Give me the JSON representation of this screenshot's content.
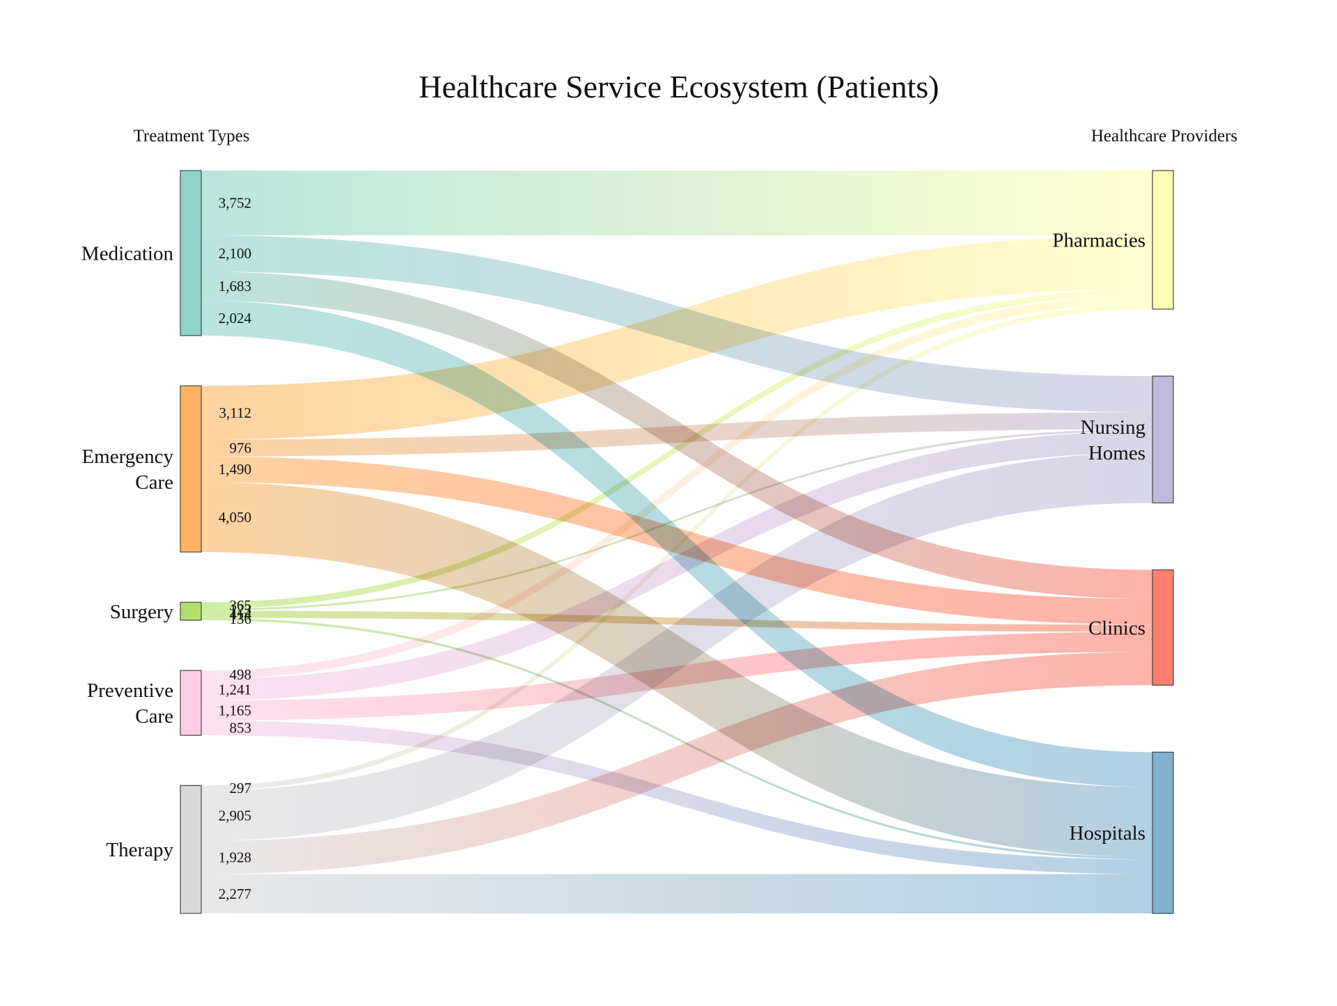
{
  "chart_data": {
    "type": "sankey",
    "title": "Healthcare Service Ecosystem (Patients)",
    "left_header": "Treatment Types",
    "right_header": "Healthcare Providers",
    "sources": [
      {
        "name": "Medication",
        "lines": [
          "Medication"
        ],
        "color": "#8dd3c7"
      },
      {
        "name": "Emergency Care",
        "lines": [
          "Emergency",
          "Care"
        ],
        "color": "#fdb462"
      },
      {
        "name": "Surgery",
        "lines": [
          "Surgery"
        ],
        "color": "#b3de69"
      },
      {
        "name": "Preventive Care",
        "lines": [
          "Preventive",
          "Care"
        ],
        "color": "#fccde5"
      },
      {
        "name": "Therapy",
        "lines": [
          "Therapy"
        ],
        "color": "#d9d9d9"
      }
    ],
    "targets": [
      {
        "name": "Pharmacies",
        "lines": [
          "Pharmacies"
        ],
        "color": "#ffffb3"
      },
      {
        "name": "Nursing Homes",
        "lines": [
          "Nursing",
          "Homes"
        ],
        "color": "#bebada"
      },
      {
        "name": "Clinics",
        "lines": [
          "Clinics"
        ],
        "color": "#fb8072"
      },
      {
        "name": "Hospitals",
        "lines": [
          "Hospitals"
        ],
        "color": "#80b1d3"
      }
    ],
    "links": [
      {
        "source": "Medication",
        "target": "Pharmacies",
        "value": 3752,
        "label": "3,752"
      },
      {
        "source": "Medication",
        "target": "Nursing Homes",
        "value": 2100,
        "label": "2,100"
      },
      {
        "source": "Medication",
        "target": "Clinics",
        "value": 1683,
        "label": "1,683"
      },
      {
        "source": "Medication",
        "target": "Hospitals",
        "value": 2024,
        "label": "2,024"
      },
      {
        "source": "Emergency Care",
        "target": "Pharmacies",
        "value": 3112,
        "label": "3,112"
      },
      {
        "source": "Emergency Care",
        "target": "Nursing Homes",
        "value": 976,
        "label": "976"
      },
      {
        "source": "Emergency Care",
        "target": "Clinics",
        "value": 1490,
        "label": "1,490"
      },
      {
        "source": "Emergency Care",
        "target": "Hospitals",
        "value": 4050,
        "label": "4,050"
      },
      {
        "source": "Surgery",
        "target": "Pharmacies",
        "value": 365,
        "label": "365"
      },
      {
        "source": "Surgery",
        "target": "Nursing Homes",
        "value": 123,
        "label": "123"
      },
      {
        "source": "Surgery",
        "target": "Clinics",
        "value": 414,
        "label": "414"
      },
      {
        "source": "Surgery",
        "target": "Hospitals",
        "value": 136,
        "label": "136"
      },
      {
        "source": "Preventive Care",
        "target": "Pharmacies",
        "value": 498,
        "label": "498"
      },
      {
        "source": "Preventive Care",
        "target": "Nursing Homes",
        "value": 1241,
        "label": "1,241"
      },
      {
        "source": "Preventive Care",
        "target": "Clinics",
        "value": 1165,
        "label": "1,165"
      },
      {
        "source": "Preventive Care",
        "target": "Hospitals",
        "value": 853,
        "label": "853"
      },
      {
        "source": "Therapy",
        "target": "Pharmacies",
        "value": 297,
        "label": "297"
      },
      {
        "source": "Therapy",
        "target": "Nursing Homes",
        "value": 2905,
        "label": "2,905"
      },
      {
        "source": "Therapy",
        "target": "Clinics",
        "value": 1928,
        "label": "1,928"
      },
      {
        "source": "Therapy",
        "target": "Hospitals",
        "value": 2277,
        "label": "2,277"
      }
    ]
  }
}
